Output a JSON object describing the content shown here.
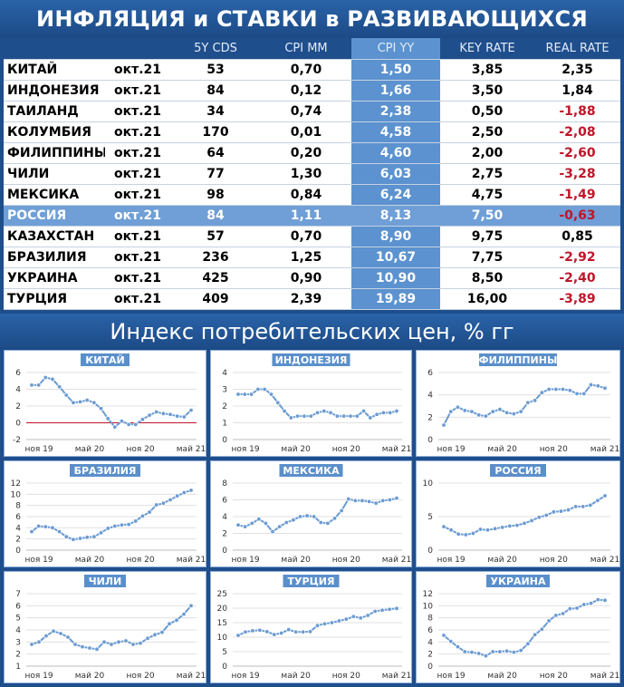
{
  "header": {
    "title": "ИНФЛЯЦИЯ и СТАВКИ в РАЗВИВАЮЩИХСЯ СТРАНАХ",
    "subtitle": "Индекс потребительских цен, % гг"
  },
  "table": {
    "columns": [
      "",
      "",
      "5Y CDS",
      "CPI MM",
      "CPI YY",
      "KEY RATE",
      "REAL RATE"
    ],
    "highlight_row": "РОССИЯ",
    "rows": [
      {
        "country": "КИТАЙ",
        "date": "окт.21",
        "cds": "53",
        "mm": "0,70",
        "yy": "1,50",
        "key": "3,85",
        "real": "2,35",
        "neg": false
      },
      {
        "country": "ИНДОНЕЗИЯ",
        "date": "окт.21",
        "cds": "84",
        "mm": "0,12",
        "yy": "1,66",
        "key": "3,50",
        "real": "1,84",
        "neg": false
      },
      {
        "country": "ТАИЛАНД",
        "date": "окт.21",
        "cds": "34",
        "mm": "0,74",
        "yy": "2,38",
        "key": "0,50",
        "real": "-1,88",
        "neg": true
      },
      {
        "country": "КОЛУМБИЯ",
        "date": "окт.21",
        "cds": "170",
        "mm": "0,01",
        "yy": "4,58",
        "key": "2,50",
        "real": "-2,08",
        "neg": true
      },
      {
        "country": "ФИЛИППИНЫ",
        "date": "окт.21",
        "cds": "64",
        "mm": "0,20",
        "yy": "4,60",
        "key": "2,00",
        "real": "-2,60",
        "neg": true
      },
      {
        "country": "ЧИЛИ",
        "date": "окт.21",
        "cds": "77",
        "mm": "1,30",
        "yy": "6,03",
        "key": "2,75",
        "real": "-3,28",
        "neg": true
      },
      {
        "country": "МЕКСИКА",
        "date": "окт.21",
        "cds": "98",
        "mm": "0,84",
        "yy": "6,24",
        "key": "4,75",
        "real": "-1,49",
        "neg": true
      },
      {
        "country": "РОССИЯ",
        "date": "окт.21",
        "cds": "84",
        "mm": "1,11",
        "yy": "8,13",
        "key": "7,50",
        "real": "-0,63",
        "neg": true
      },
      {
        "country": "КАЗАХСТАН",
        "date": "окт.21",
        "cds": "57",
        "mm": "0,70",
        "yy": "8,90",
        "key": "9,75",
        "real": "0,85",
        "neg": false
      },
      {
        "country": "БРАЗИЛИЯ",
        "date": "окт.21",
        "cds": "236",
        "mm": "1,25",
        "yy": "10,67",
        "key": "7,75",
        "real": "-2,92",
        "neg": true
      },
      {
        "country": "УКРАИНА",
        "date": "окт.21",
        "cds": "425",
        "mm": "0,90",
        "yy": "10,90",
        "key": "8,50",
        "real": "-2,40",
        "neg": true
      },
      {
        "country": "ТУРЦИЯ",
        "date": "окт.21",
        "cds": "409",
        "mm": "2,39",
        "yy": "19,89",
        "key": "16,00",
        "real": "-3,89",
        "neg": true
      }
    ]
  },
  "colors": {
    "line": "#6b9bd2",
    "negative": "#c0152a",
    "accent": "#5b92cf"
  },
  "chart_data": [
    {
      "type": "line",
      "title": "КИТАЙ",
      "ylim": [
        -2,
        6
      ],
      "yticks": [
        -2,
        0,
        2,
        4,
        6
      ],
      "zero_line": true,
      "x_labels": [
        "ноя 19",
        "май 20",
        "ноя 20",
        "май 21"
      ],
      "values": [
        4.5,
        4.5,
        5.4,
        5.2,
        4.3,
        3.3,
        2.4,
        2.5,
        2.7,
        2.4,
        1.7,
        0.5,
        -0.5,
        0.2,
        -0.2,
        -0.2,
        0.4,
        0.9,
        1.3,
        1.1,
        1.0,
        0.8,
        0.7,
        1.5
      ]
    },
    {
      "type": "line",
      "title": "ИНДОНЕЗИЯ",
      "ylim": [
        0,
        4
      ],
      "yticks": [
        0,
        1,
        2,
        3,
        4
      ],
      "x_labels": [
        "ноя 19",
        "май 20",
        "ноя 20",
        "май 21"
      ],
      "values": [
        2.7,
        2.7,
        2.7,
        3.0,
        3.0,
        2.7,
        2.2,
        1.7,
        1.3,
        1.4,
        1.4,
        1.4,
        1.6,
        1.7,
        1.6,
        1.4,
        1.4,
        1.4,
        1.4,
        1.7,
        1.3,
        1.5,
        1.6,
        1.6,
        1.7
      ]
    },
    {
      "type": "line",
      "title": "ФИЛИППИНЫ",
      "ylim": [
        0,
        6
      ],
      "yticks": [
        0,
        2,
        4,
        6
      ],
      "x_labels": [
        "ноя 19",
        "май 20",
        "ноя 20",
        "май 21"
      ],
      "values": [
        1.3,
        2.5,
        2.9,
        2.6,
        2.5,
        2.2,
        2.1,
        2.5,
        2.7,
        2.4,
        2.3,
        2.5,
        3.3,
        3.5,
        4.2,
        4.5,
        4.5,
        4.5,
        4.4,
        4.1,
        4.1,
        4.9,
        4.8,
        4.6
      ]
    },
    {
      "type": "line",
      "title": "БРАЗИЛИЯ",
      "ylim": [
        0,
        12
      ],
      "yticks": [
        0,
        2,
        4,
        6,
        8,
        10,
        12
      ],
      "x_labels": [
        "ноя 19",
        "май 20",
        "ноя 20",
        "май 21"
      ],
      "values": [
        3.3,
        4.3,
        4.2,
        4.0,
        3.3,
        2.4,
        1.9,
        2.1,
        2.3,
        2.4,
        3.1,
        3.9,
        4.3,
        4.5,
        4.6,
        5.2,
        6.1,
        6.8,
        8.1,
        8.4,
        9.0,
        9.7,
        10.3,
        10.7
      ]
    },
    {
      "type": "line",
      "title": "МЕКСИКА",
      "ylim": [
        0,
        8
      ],
      "yticks": [
        0,
        2,
        4,
        6,
        8
      ],
      "x_labels": [
        "ноя 19",
        "май 20",
        "ноя 20",
        "май 21"
      ],
      "values": [
        3.0,
        2.8,
        3.2,
        3.7,
        3.2,
        2.2,
        2.8,
        3.3,
        3.6,
        4.0,
        4.1,
        4.0,
        3.3,
        3.2,
        3.8,
        4.7,
        6.1,
        5.9,
        5.9,
        5.8,
        5.6,
        5.9,
        6.0,
        6.2
      ]
    },
    {
      "type": "line",
      "title": "РОССИЯ",
      "ylim": [
        0,
        10
      ],
      "yticks": [
        0,
        5,
        10
      ],
      "x_labels": [
        "ноя 19",
        "май 20",
        "ноя 20",
        "май 21"
      ],
      "values": [
        3.5,
        3.0,
        2.4,
        2.3,
        2.5,
        3.1,
        3.0,
        3.2,
        3.4,
        3.6,
        3.7,
        4.0,
        4.4,
        4.9,
        5.2,
        5.7,
        5.8,
        6.0,
        6.5,
        6.5,
        6.7,
        7.4,
        8.1
      ]
    },
    {
      "type": "line",
      "title": "ЧИЛИ",
      "ylim": [
        1,
        7
      ],
      "yticks": [
        1,
        2,
        3,
        4,
        5,
        6,
        7
      ],
      "x_labels": [
        "ноя 19",
        "май 20",
        "ноя 20",
        "май 21"
      ],
      "values": [
        2.8,
        3.0,
        3.5,
        3.9,
        3.7,
        3.4,
        2.8,
        2.6,
        2.5,
        2.4,
        3.0,
        2.8,
        3.0,
        3.1,
        2.8,
        2.9,
        3.3,
        3.6,
        3.8,
        4.5,
        4.8,
        5.3,
        6.0
      ]
    },
    {
      "type": "line",
      "title": "ТУРЦИЯ",
      "ylim": [
        0,
        25
      ],
      "yticks": [
        0,
        5,
        10,
        15,
        20,
        25
      ],
      "x_labels": [
        "ноя 19",
        "май 20",
        "ноя 20",
        "май 21"
      ],
      "values": [
        10.6,
        11.8,
        12.2,
        12.4,
        11.9,
        10.9,
        11.4,
        12.6,
        11.8,
        11.8,
        11.9,
        14.0,
        14.6,
        15.0,
        15.6,
        16.2,
        17.1,
        16.6,
        17.5,
        18.9,
        19.3,
        19.6,
        19.9
      ]
    },
    {
      "type": "line",
      "title": "УКРАИНА",
      "ylim": [
        0,
        12
      ],
      "yticks": [
        0,
        2,
        4,
        6,
        8,
        10,
        12
      ],
      "x_labels": [
        "ноя 19",
        "май 20",
        "ноя 20",
        "май 21"
      ],
      "values": [
        5.1,
        4.1,
        3.2,
        2.4,
        2.3,
        2.1,
        1.7,
        2.4,
        2.4,
        2.5,
        2.3,
        2.6,
        3.7,
        5.2,
        6.1,
        7.5,
        8.4,
        8.7,
        9.5,
        9.6,
        10.2,
        10.4,
        11.0,
        10.9
      ]
    }
  ]
}
